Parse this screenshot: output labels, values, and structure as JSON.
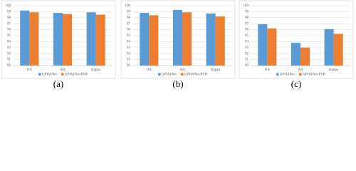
{
  "chart_data": [
    {
      "type": "bar",
      "caption": "(a)",
      "categories": [
        "OA",
        "AA",
        "Kappa"
      ],
      "series": [
        {
          "name": "GPHANet",
          "color": "#5b9bd5",
          "values": [
            99.2,
            98.8,
            98.9
          ]
        },
        {
          "name": "GPHANet-PVR",
          "color": "#ed7d31",
          "values": [
            98.9,
            98.6,
            98.5
          ]
        }
      ],
      "ylim": [
        90,
        100
      ],
      "yticks": [
        90,
        91,
        92,
        93,
        94,
        95,
        96,
        97,
        98,
        99,
        100
      ],
      "grid": true
    },
    {
      "type": "bar",
      "caption": "(b)",
      "categories": [
        "OA",
        "AA",
        "Kappa"
      ],
      "series": [
        {
          "name": "GPHANet",
          "color": "#5b9bd5",
          "values": [
            98.8,
            99.3,
            98.7
          ]
        },
        {
          "name": "GPHANet-PVR",
          "color": "#ed7d31",
          "values": [
            98.4,
            98.9,
            98.2
          ]
        }
      ],
      "ylim": [
        90,
        100
      ],
      "yticks": [
        90,
        91,
        92,
        93,
        94,
        95,
        96,
        97,
        98,
        99,
        100
      ],
      "grid": true
    },
    {
      "type": "bar",
      "caption": "(c)",
      "categories": [
        "OA",
        "AA",
        "Kappa"
      ],
      "series": [
        {
          "name": "GPHANet",
          "color": "#5b9bd5",
          "values": [
            96.9,
            93.8,
            96.1
          ]
        },
        {
          "name": "GPHANet-PVR",
          "color": "#ed7d31",
          "values": [
            96.2,
            93.0,
            95.3
          ]
        }
      ],
      "ylim": [
        90,
        100
      ],
      "yticks": [
        90,
        91,
        92,
        93,
        94,
        95,
        96,
        97,
        98,
        99,
        100
      ],
      "grid": true
    }
  ]
}
